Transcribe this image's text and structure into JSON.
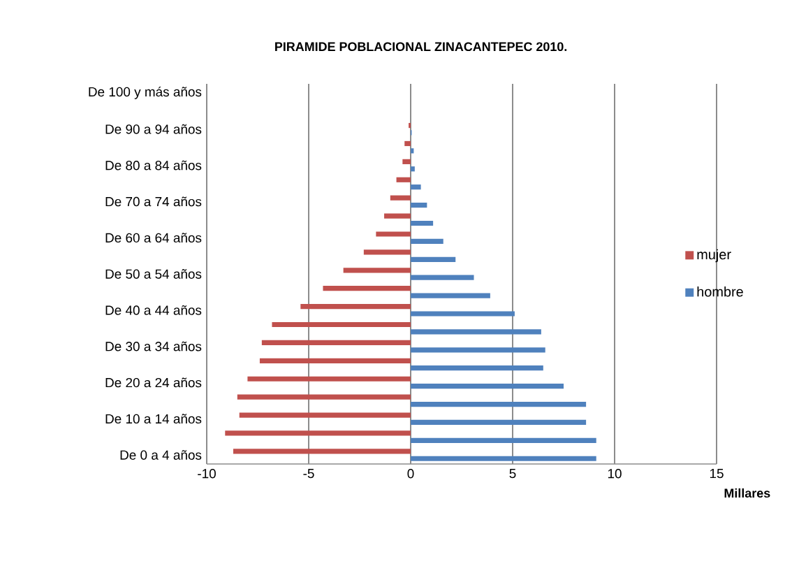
{
  "chart_data": {
    "type": "bar",
    "orientation": "horizontal",
    "title": "PIRAMIDE POBLACIONAL ZINACANTEPEC 2010.",
    "xlabel": "Millares",
    "categories": [
      "De 100 y más años",
      null,
      "De 90 a 94 años",
      null,
      "De 80 a 84 años",
      null,
      "De 70 a 74 años",
      null,
      "De 60 a 64 años",
      null,
      "De 50 a 54 años",
      null,
      "De 40 a 44 años",
      null,
      "De 30 a 34 años",
      null,
      "De 20 a 24 años",
      null,
      "De 10 a 14 años",
      null,
      "De 0 a 4 años"
    ],
    "series": [
      {
        "name": "mujer",
        "color": "#c0504d",
        "values": [
          0,
          0,
          -0.1,
          -0.3,
          -0.4,
          -0.7,
          -1.0,
          -1.3,
          -1.7,
          -2.3,
          -3.3,
          -4.3,
          -5.4,
          -6.8,
          -7.3,
          -7.4,
          -8.0,
          -8.5,
          -8.4,
          -9.1,
          -8.7
        ]
      },
      {
        "name": "hombre",
        "color": "#4f81bd",
        "values": [
          0,
          0,
          0.05,
          0.15,
          0.2,
          0.5,
          0.8,
          1.1,
          1.6,
          2.2,
          3.1,
          3.9,
          5.1,
          6.4,
          6.6,
          6.5,
          7.5,
          8.6,
          8.6,
          9.1,
          9.1
        ]
      }
    ],
    "xlim": [
      -10,
      15
    ],
    "xticks": [
      -10,
      -5,
      0,
      5,
      10,
      15
    ],
    "grid": "x",
    "legend": "right"
  }
}
